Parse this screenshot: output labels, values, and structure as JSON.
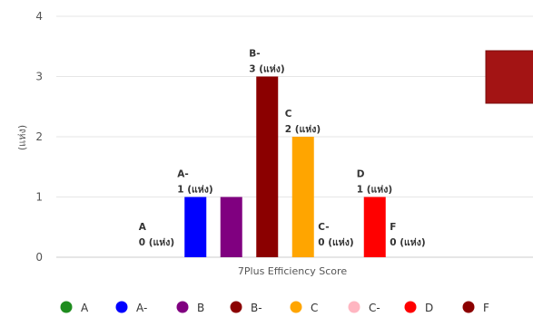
{
  "chart_data": {
    "type": "bar",
    "categories": [
      "A",
      "A-",
      "B",
      "B-",
      "C",
      "C-",
      "D",
      "F"
    ],
    "values": [
      0,
      1,
      1,
      3,
      2,
      0,
      1,
      0
    ],
    "colors": [
      "#1e8c1e",
      "#0000ff",
      "#800080",
      "#8b0000",
      "#ffa500",
      "#ffb6c1",
      "#ff0000",
      "#8b0000"
    ],
    "unit_label": "(แห่ง)",
    "data_labels": [
      [
        "A",
        "0 (แห่ง)"
      ],
      [
        "A-",
        "1 (แห่ง)"
      ],
      null,
      [
        "B-",
        "3 (แห่ง)"
      ],
      [
        "C",
        "2 (แห่ง)"
      ],
      [
        "C-",
        "0 (แห่ง)"
      ],
      [
        "D",
        "1 (แห่ง)"
      ],
      [
        "F",
        "0 (แห่ง)"
      ]
    ],
    "xlabel": "7Plus Efficiency Score",
    "ylabel": "(แห่ง)",
    "ylim": [
      0,
      4
    ],
    "yticks": [
      0,
      1,
      2,
      3,
      4
    ],
    "grid": true,
    "legend_position": "bottom",
    "legend": [
      "A",
      "A-",
      "B",
      "B-",
      "C",
      "C-",
      "D",
      "F"
    ],
    "right_box_color": "#a31414"
  }
}
